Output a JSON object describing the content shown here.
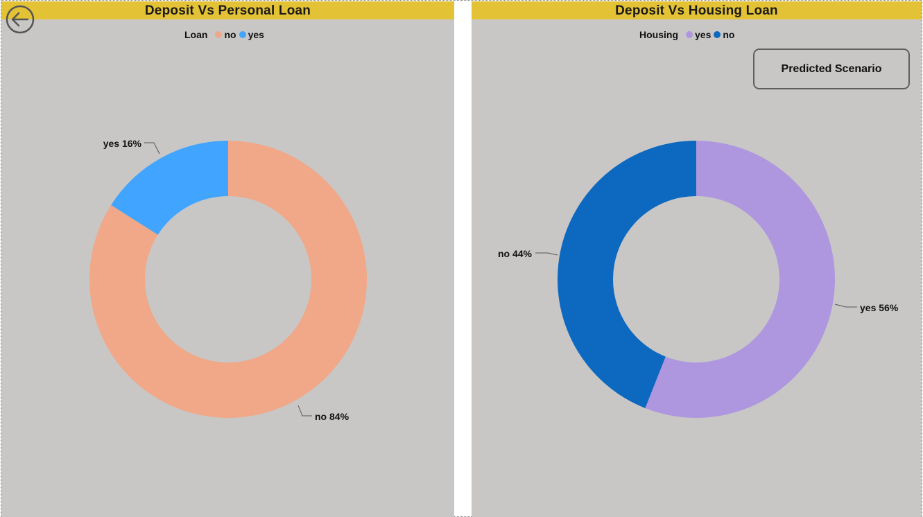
{
  "nav": {
    "back_icon": "arrow-left-circle-icon"
  },
  "charts": {
    "left": {
      "title": "Deposit Vs Personal Loan",
      "legend_title": "Loan"
    },
    "right": {
      "title": "Deposit Vs Housing Loan",
      "legend_title": "Housing",
      "button_label": "Predicted Scenario"
    }
  },
  "chart_data": [
    {
      "type": "pie",
      "donut": true,
      "title": "Deposit Vs Personal Loan",
      "legend_title": "Loan",
      "legend_position": "top",
      "slices": [
        {
          "name": "no",
          "value": 84,
          "label": "no 84%",
          "color": "#f0a888"
        },
        {
          "name": "yes",
          "value": 16,
          "label": "yes 16%",
          "color": "#41a4ff"
        }
      ]
    },
    {
      "type": "pie",
      "donut": true,
      "title": "Deposit Vs Housing Loan",
      "legend_title": "Housing",
      "legend_position": "top",
      "slices": [
        {
          "name": "yes",
          "value": 56,
          "label": "yes 56%",
          "color": "#ae97df"
        },
        {
          "name": "no",
          "value": 44,
          "label": "no 44%",
          "color": "#0d68c0"
        }
      ]
    }
  ]
}
